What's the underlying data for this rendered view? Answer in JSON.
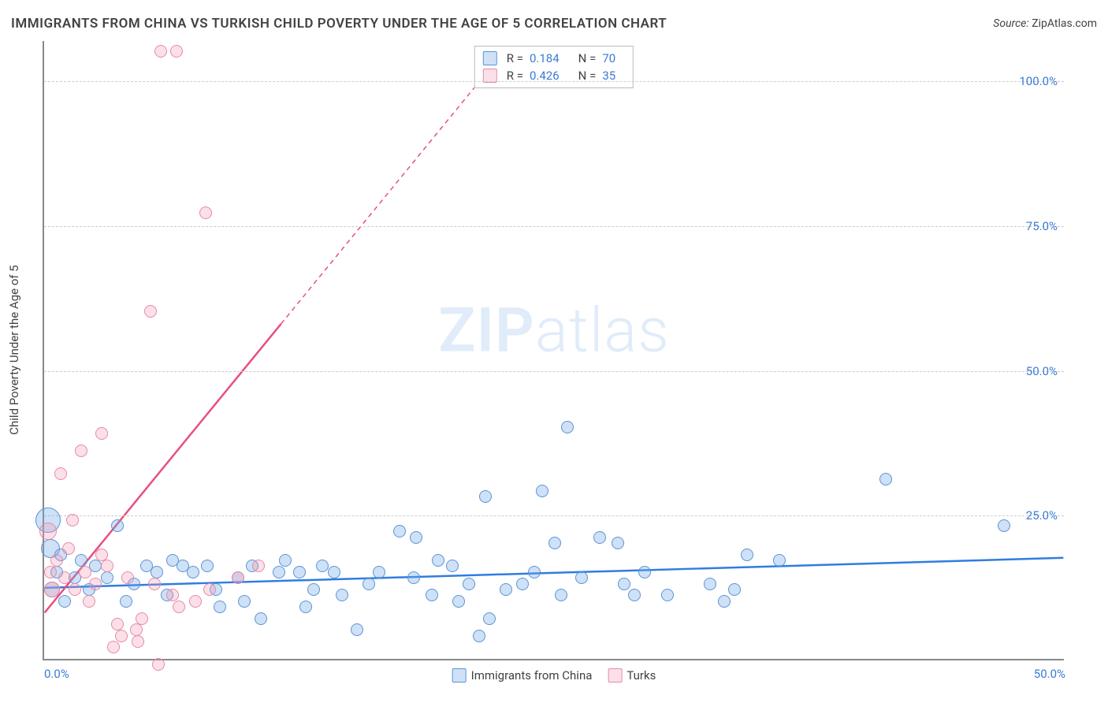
{
  "header": {
    "title": "IMMIGRANTS FROM CHINA VS TURKISH CHILD POVERTY UNDER THE AGE OF 5 CORRELATION CHART",
    "source_label": "Source:",
    "source_value": "ZipAtlas.com"
  },
  "watermark": {
    "zip": "ZIP",
    "atlas": "atlas"
  },
  "chart": {
    "type": "scatter",
    "y_axis_title": "Child Poverty Under the Age of 5",
    "background_color": "#ffffff",
    "grid_color": "#cccccc",
    "axis_color": "#888888",
    "tick_label_color": "#3a7bd5",
    "xlim": [
      0,
      50
    ],
    "ylim": [
      0,
      107
    ],
    "xticks": [
      {
        "v": 0,
        "label": "0.0%"
      },
      {
        "v": 50,
        "label": "50.0%"
      }
    ],
    "yticks": [
      {
        "v": 25,
        "label": "25.0%"
      },
      {
        "v": 50,
        "label": "50.0%"
      },
      {
        "v": 75,
        "label": "75.0%"
      },
      {
        "v": 100,
        "label": "100.0%"
      }
    ],
    "series": [
      {
        "key": "china",
        "legend_label": "Immigrants from China",
        "color_fill": "rgba(115,169,229,0.35)",
        "color_stroke": "#5a94d8",
        "trend_color": "#2f7de0",
        "stats": {
          "r_label": "R =",
          "r": "0.184",
          "n_label": "N =",
          "n": "70"
        },
        "trend": {
          "x1": 0,
          "y1": 12.3,
          "x2": 50,
          "y2": 17.5
        },
        "marker_r_default": 8,
        "points": [
          {
            "x": 0.2,
            "y": 24,
            "r": 16
          },
          {
            "x": 0.3,
            "y": 19,
            "r": 12
          },
          {
            "x": 0.4,
            "y": 12,
            "r": 10
          },
          {
            "x": 0.6,
            "y": 15
          },
          {
            "x": 0.8,
            "y": 18
          },
          {
            "x": 1.0,
            "y": 10
          },
          {
            "x": 1.5,
            "y": 14
          },
          {
            "x": 1.8,
            "y": 17
          },
          {
            "x": 2.2,
            "y": 12
          },
          {
            "x": 2.5,
            "y": 16
          },
          {
            "x": 3.1,
            "y": 14
          },
          {
            "x": 3.6,
            "y": 23
          },
          {
            "x": 4.0,
            "y": 10
          },
          {
            "x": 4.4,
            "y": 13
          },
          {
            "x": 5.0,
            "y": 16
          },
          {
            "x": 5.5,
            "y": 15
          },
          {
            "x": 6.0,
            "y": 11
          },
          {
            "x": 6.3,
            "y": 17
          },
          {
            "x": 6.8,
            "y": 16
          },
          {
            "x": 7.3,
            "y": 15
          },
          {
            "x": 8.0,
            "y": 16
          },
          {
            "x": 8.4,
            "y": 12
          },
          {
            "x": 8.6,
            "y": 9
          },
          {
            "x": 9.5,
            "y": 14
          },
          {
            "x": 9.8,
            "y": 10
          },
          {
            "x": 10.2,
            "y": 16
          },
          {
            "x": 10.6,
            "y": 7
          },
          {
            "x": 11.5,
            "y": 15
          },
          {
            "x": 11.8,
            "y": 17
          },
          {
            "x": 12.5,
            "y": 15
          },
          {
            "x": 12.8,
            "y": 9
          },
          {
            "x": 13.2,
            "y": 12
          },
          {
            "x": 13.6,
            "y": 16
          },
          {
            "x": 14.2,
            "y": 15
          },
          {
            "x": 14.6,
            "y": 11
          },
          {
            "x": 15.3,
            "y": 5
          },
          {
            "x": 15.9,
            "y": 13
          },
          {
            "x": 16.4,
            "y": 15
          },
          {
            "x": 17.4,
            "y": 22
          },
          {
            "x": 18.1,
            "y": 14
          },
          {
            "x": 18.2,
            "y": 21
          },
          {
            "x": 19.0,
            "y": 11
          },
          {
            "x": 19.3,
            "y": 17
          },
          {
            "x": 20.0,
            "y": 16
          },
          {
            "x": 20.3,
            "y": 10
          },
          {
            "x": 20.8,
            "y": 13
          },
          {
            "x": 21.3,
            "y": 4
          },
          {
            "x": 21.6,
            "y": 28
          },
          {
            "x": 21.8,
            "y": 7
          },
          {
            "x": 22.6,
            "y": 12
          },
          {
            "x": 23.4,
            "y": 13
          },
          {
            "x": 24.0,
            "y": 15
          },
          {
            "x": 24.4,
            "y": 29
          },
          {
            "x": 25.0,
            "y": 20
          },
          {
            "x": 25.3,
            "y": 11
          },
          {
            "x": 25.6,
            "y": 40
          },
          {
            "x": 26.3,
            "y": 14
          },
          {
            "x": 27.2,
            "y": 21
          },
          {
            "x": 28.1,
            "y": 20
          },
          {
            "x": 28.4,
            "y": 13
          },
          {
            "x": 28.9,
            "y": 11
          },
          {
            "x": 29.4,
            "y": 15
          },
          {
            "x": 30.5,
            "y": 11
          },
          {
            "x": 32.6,
            "y": 13
          },
          {
            "x": 33.8,
            "y": 12
          },
          {
            "x": 34.4,
            "y": 18
          },
          {
            "x": 36.0,
            "y": 17
          },
          {
            "x": 41.2,
            "y": 31
          },
          {
            "x": 47.0,
            "y": 23
          },
          {
            "x": 33.3,
            "y": 10
          }
        ]
      },
      {
        "key": "turks",
        "legend_label": "Turks",
        "color_fill": "rgba(241,151,177,0.30)",
        "color_stroke": "#e789a8",
        "trend_color": "#e84f7d",
        "stats": {
          "r_label": "R =",
          "r": "0.426",
          "n_label": "N =",
          "n": "35"
        },
        "trend": {
          "x1": 0,
          "y1": 8,
          "x2": 11.6,
          "y2": 58
        },
        "trend_extend": {
          "x1": 11.6,
          "y1": 58,
          "x2": 22.5,
          "y2": 105
        },
        "marker_r_default": 8,
        "points": [
          {
            "x": 0.2,
            "y": 22,
            "r": 11
          },
          {
            "x": 0.3,
            "y": 15
          },
          {
            "x": 0.4,
            "y": 12,
            "r": 10
          },
          {
            "x": 0.6,
            "y": 17
          },
          {
            "x": 0.8,
            "y": 32
          },
          {
            "x": 1.0,
            "y": 14
          },
          {
            "x": 1.2,
            "y": 19
          },
          {
            "x": 1.4,
            "y": 24
          },
          {
            "x": 1.5,
            "y": 12
          },
          {
            "x": 1.8,
            "y": 36
          },
          {
            "x": 2.0,
            "y": 15
          },
          {
            "x": 2.2,
            "y": 10
          },
          {
            "x": 2.5,
            "y": 13
          },
          {
            "x": 2.8,
            "y": 39
          },
          {
            "x": 2.8,
            "y": 18
          },
          {
            "x": 3.1,
            "y": 16
          },
          {
            "x": 3.4,
            "y": 2
          },
          {
            "x": 3.6,
            "y": 6
          },
          {
            "x": 3.8,
            "y": 4
          },
          {
            "x": 4.1,
            "y": 14
          },
          {
            "x": 4.5,
            "y": 5
          },
          {
            "x": 4.6,
            "y": 3
          },
          {
            "x": 4.8,
            "y": 7
          },
          {
            "x": 5.2,
            "y": 60
          },
          {
            "x": 5.4,
            "y": 13
          },
          {
            "x": 5.6,
            "y": -1
          },
          {
            "x": 5.7,
            "y": 105
          },
          {
            "x": 6.3,
            "y": 11
          },
          {
            "x": 6.5,
            "y": 105
          },
          {
            "x": 6.6,
            "y": 9
          },
          {
            "x": 7.4,
            "y": 10
          },
          {
            "x": 7.9,
            "y": 77
          },
          {
            "x": 8.1,
            "y": 12
          },
          {
            "x": 9.5,
            "y": 14
          },
          {
            "x": 10.5,
            "y": 16
          }
        ]
      }
    ],
    "legend_bottom": [
      {
        "swatch": "blue",
        "bind": "chart.series.0.legend_label"
      },
      {
        "swatch": "pink",
        "bind": "chart.series.1.legend_label"
      }
    ]
  }
}
